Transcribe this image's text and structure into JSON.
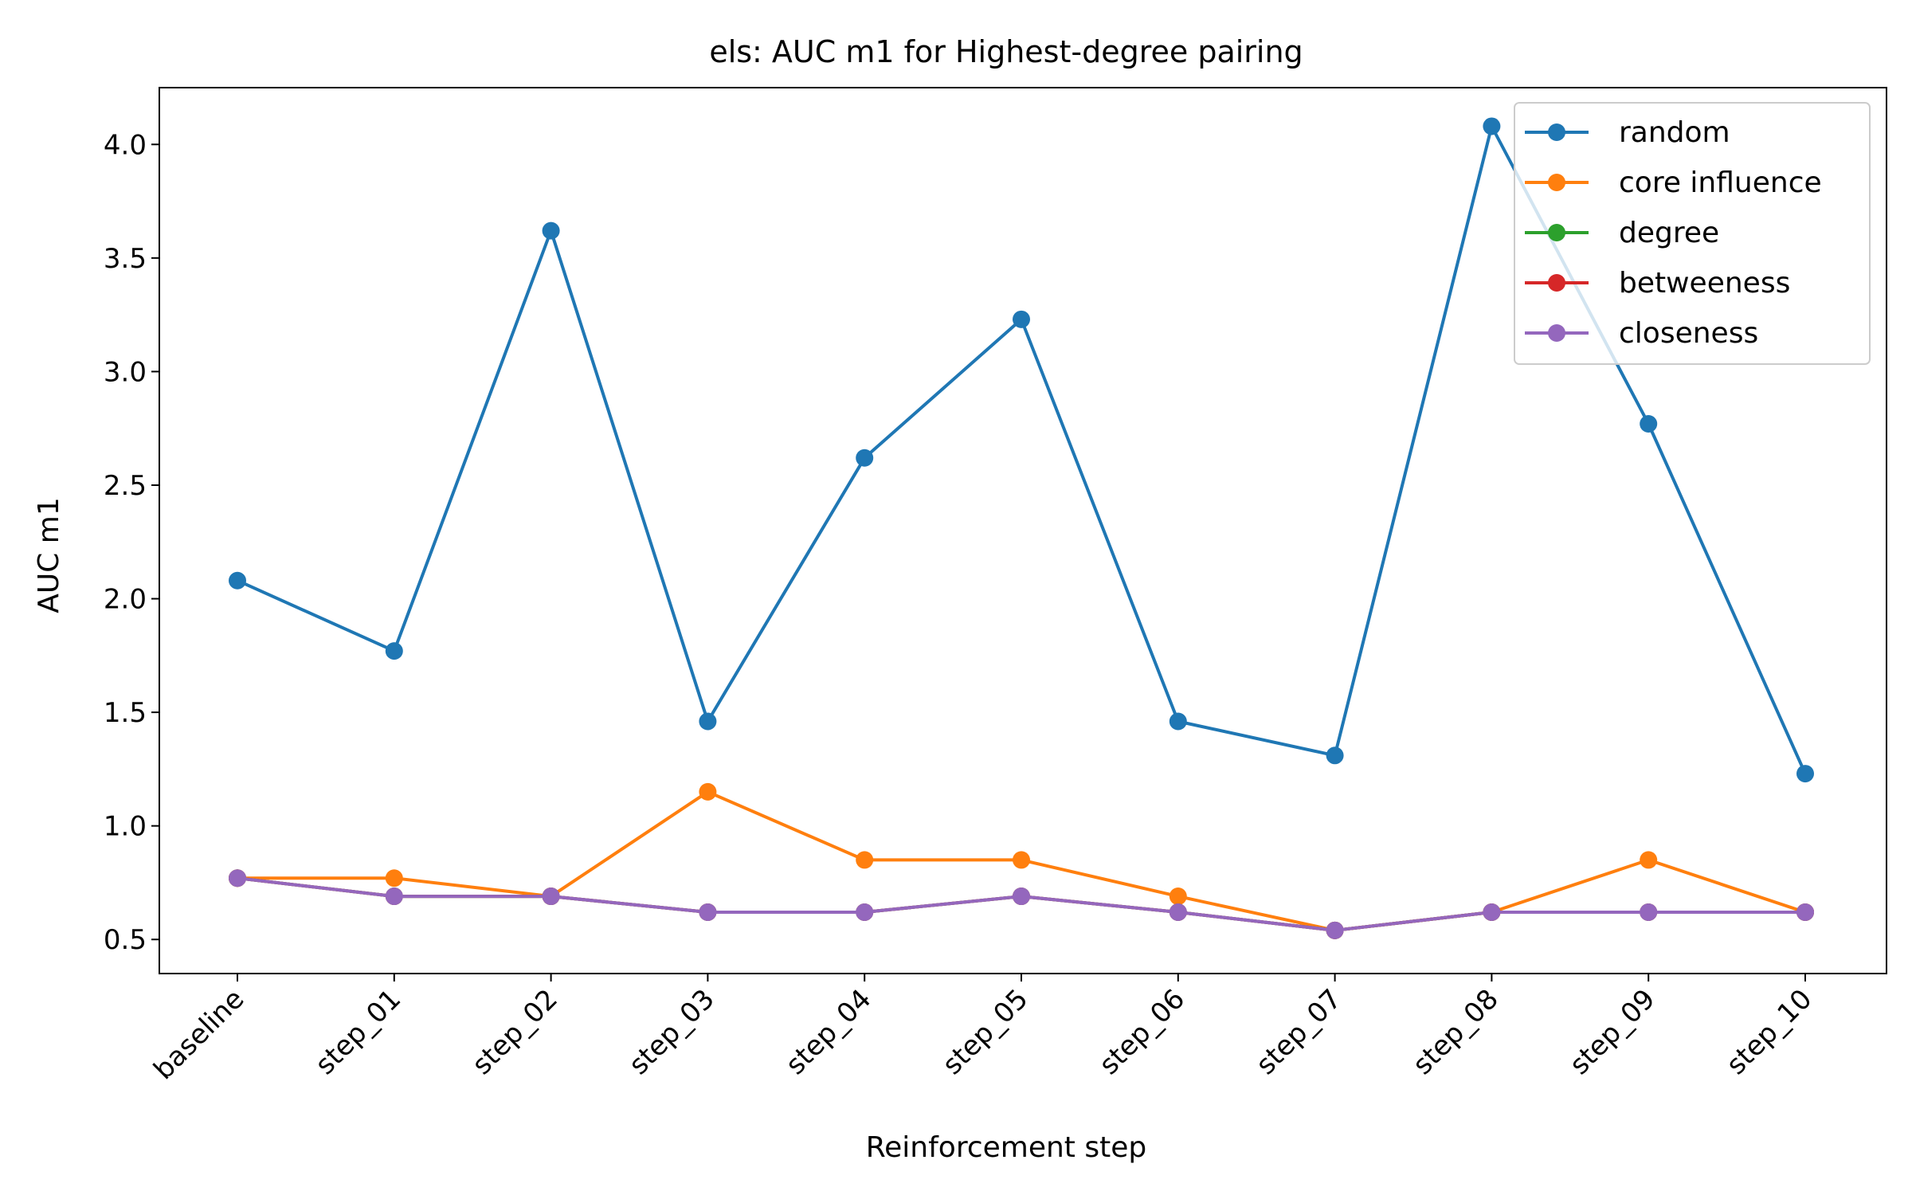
{
  "chart_data": {
    "type": "line",
    "title": "els: AUC m1 for Highest-degree pairing",
    "xlabel": "Reinforcement step",
    "ylabel": "AUC m1",
    "categories": [
      "baseline",
      "step_01",
      "step_02",
      "step_03",
      "step_04",
      "step_05",
      "step_06",
      "step_07",
      "step_08",
      "step_09",
      "step_10"
    ],
    "ylim": [
      0.35,
      4.25
    ],
    "yticks": [
      0.5,
      1.0,
      1.5,
      2.0,
      2.5,
      3.0,
      3.5,
      4.0
    ],
    "ytick_labels": [
      "0.5",
      "1.0",
      "1.5",
      "2.0",
      "2.5",
      "3.0",
      "3.5",
      "4.0"
    ],
    "grid": false,
    "legend_position": "top-right",
    "series": [
      {
        "name": "random",
        "color": "#1f77b4",
        "values": [
          2.08,
          1.77,
          3.62,
          1.46,
          2.62,
          3.23,
          1.46,
          1.31,
          4.08,
          2.77,
          1.23
        ]
      },
      {
        "name": "core influence",
        "color": "#ff7f0e",
        "values": [
          0.77,
          0.77,
          0.69,
          1.15,
          0.85,
          0.85,
          0.69,
          0.54,
          0.62,
          0.85,
          0.62
        ]
      },
      {
        "name": "degree",
        "color": "#2ca02c",
        "values": [
          0.77,
          0.69,
          0.69,
          0.62,
          0.62,
          0.69,
          0.62,
          0.54,
          0.62,
          0.62,
          0.62
        ]
      },
      {
        "name": "betweeness",
        "color": "#d62728",
        "values": [
          0.77,
          0.69,
          0.69,
          0.62,
          0.62,
          0.69,
          0.62,
          0.54,
          0.62,
          0.62,
          0.62
        ]
      },
      {
        "name": "closeness",
        "color": "#9467bd",
        "values": [
          0.77,
          0.69,
          0.69,
          0.62,
          0.62,
          0.69,
          0.62,
          0.54,
          0.62,
          0.62,
          0.62
        ]
      }
    ]
  }
}
